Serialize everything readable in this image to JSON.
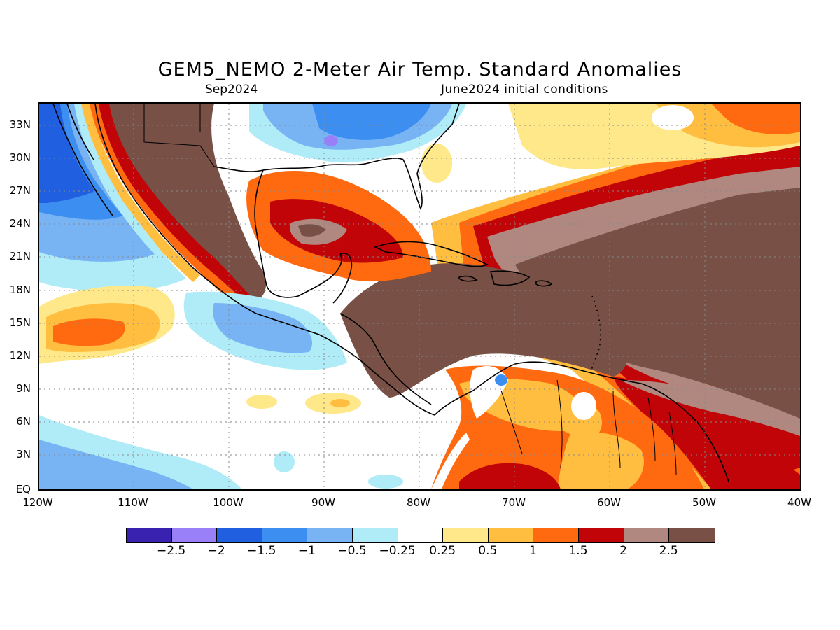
{
  "title": "GEM5_NEMO 2-Meter Air Temp. Standard Anomalies",
  "subtitle_left": "Sep2024",
  "subtitle_right": "June2024 initial conditions",
  "lat_labels": [
    "33N",
    "30N",
    "27N",
    "24N",
    "21N",
    "18N",
    "15N",
    "12N",
    "9N",
    "6N",
    "3N",
    "EQ"
  ],
  "lon_labels": [
    "120W",
    "110W",
    "100W",
    "90W",
    "80W",
    "70W",
    "60W",
    "50W",
    "40W"
  ],
  "colorbar": {
    "colors": [
      "#3a22b0",
      "#9a80f8",
      "#2060e0",
      "#3c8ef0",
      "#78b4f4",
      "#b0ecf8",
      "#ffffff",
      "#fee88a",
      "#ffbe40",
      "#ff6a10",
      "#c00408",
      "#b08880",
      "#785046"
    ],
    "labels": [
      "-2.5",
      "-2",
      "-1.5",
      "-1",
      "-0.5",
      "-0.25",
      "0.25",
      "0.5",
      "1",
      "1.5",
      "2",
      "2.5"
    ]
  }
}
